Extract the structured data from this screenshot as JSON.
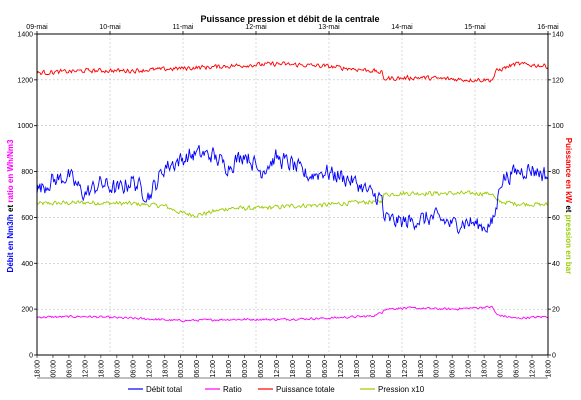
{
  "chart_data": {
    "type": "line",
    "title": "Puissance pression et débit de la centrale",
    "top_axis": {
      "labels": [
        "09-mai",
        "10-mai",
        "11-mai",
        "12-mai",
        "13-mai",
        "14-mai",
        "15-mai",
        "16-mai"
      ]
    },
    "x_axis": {
      "labels": [
        "18:00",
        "00:00",
        "06:00",
        "12:00",
        "18:00",
        "00:00",
        "06:00",
        "12:00",
        "18:00",
        "00:00",
        "06:00",
        "12:00",
        "18:00",
        "00:00",
        "06:00",
        "12:00",
        "18:00",
        "00:00",
        "06:00",
        "12:00",
        "18:00",
        "00:00",
        "06:00",
        "12:00",
        "18:00",
        "00:00",
        "06:00",
        "12:00",
        "18:00",
        "00:00",
        "06:00",
        "12:00",
        "18:00"
      ]
    },
    "y_left": {
      "label_parts": [
        {
          "text": "Débit en Nm3/h",
          "color": "#0000ff"
        },
        {
          "text": " et ",
          "color": "#000000"
        },
        {
          "text": "ratio en Wh/Nm3",
          "color": "#ff00ff"
        }
      ],
      "ticks": [
        0,
        200,
        400,
        600,
        800,
        1000,
        1200,
        1400
      ],
      "ylim": [
        0,
        1400
      ]
    },
    "y_right": {
      "label_parts": [
        {
          "text": "Puissance en kW",
          "color": "#ff0000"
        },
        {
          "text": " et ",
          "color": "#000000"
        },
        {
          "text": "pression en bar",
          "color": "#99cc00"
        }
      ],
      "ticks": [
        0,
        20,
        40,
        60,
        80,
        100,
        120,
        140
      ],
      "ylim": [
        0,
        140
      ]
    },
    "x_range": [
      0,
      32
    ],
    "grid": true,
    "legend_position": "bottom",
    "series": [
      {
        "name": "Débit total",
        "color": "#0000ff",
        "axis": "left",
        "noise": 45,
        "points": [
          [
            0,
            720
          ],
          [
            1,
            760
          ],
          [
            2,
            780
          ],
          [
            3,
            700
          ],
          [
            4,
            750
          ],
          [
            5,
            720
          ],
          [
            6,
            760
          ],
          [
            7,
            690
          ],
          [
            8,
            820
          ],
          [
            9,
            850
          ],
          [
            10,
            880
          ],
          [
            11,
            870
          ],
          [
            12,
            820
          ],
          [
            13,
            880
          ],
          [
            14,
            800
          ],
          [
            15,
            860
          ],
          [
            16,
            830
          ],
          [
            17,
            780
          ],
          [
            18,
            800
          ],
          [
            19,
            780
          ],
          [
            20,
            750
          ],
          [
            21,
            700
          ],
          [
            21.6,
            680
          ],
          [
            21.7,
            600
          ],
          [
            22,
            590
          ],
          [
            23,
            580
          ],
          [
            24,
            590
          ],
          [
            25,
            600
          ],
          [
            26,
            570
          ],
          [
            27,
            580
          ],
          [
            28,
            560
          ],
          [
            28.5,
            570
          ],
          [
            28.8,
            650
          ],
          [
            29,
            760
          ],
          [
            30,
            800
          ],
          [
            31,
            810
          ],
          [
            32,
            780
          ]
        ]
      },
      {
        "name": "Ratio",
        "color": "#ff00ff",
        "axis": "left",
        "noise": 6,
        "points": [
          [
            0,
            165
          ],
          [
            3,
            168
          ],
          [
            6,
            160
          ],
          [
            9,
            150
          ],
          [
            12,
            155
          ],
          [
            15,
            155
          ],
          [
            18,
            160
          ],
          [
            21,
            170
          ],
          [
            21.6,
            185
          ],
          [
            21.7,
            200
          ],
          [
            23,
            205
          ],
          [
            26,
            200
          ],
          [
            28.5,
            210
          ],
          [
            28.8,
            175
          ],
          [
            30,
            160
          ],
          [
            32,
            168
          ]
        ]
      },
      {
        "name": "Puissance totale",
        "color": "#ff0000",
        "axis": "right",
        "noise": 1.2,
        "points": [
          [
            0,
            123
          ],
          [
            3,
            124
          ],
          [
            6,
            124
          ],
          [
            9,
            125
          ],
          [
            12,
            126
          ],
          [
            15,
            127
          ],
          [
            18,
            126
          ],
          [
            21,
            124
          ],
          [
            21.6,
            123
          ],
          [
            21.7,
            120.5
          ],
          [
            24,
            121
          ],
          [
            27,
            120
          ],
          [
            28.5,
            120
          ],
          [
            28.8,
            124
          ],
          [
            30,
            127
          ],
          [
            32,
            126
          ]
        ]
      },
      {
        "name": "Pression x10",
        "color": "#99cc00",
        "axis": "left",
        "noise": 12,
        "points": [
          [
            0,
            660
          ],
          [
            3,
            665
          ],
          [
            6,
            660
          ],
          [
            8,
            650
          ],
          [
            9,
            620
          ],
          [
            10,
            610
          ],
          [
            12,
            640
          ],
          [
            14,
            640
          ],
          [
            16,
            650
          ],
          [
            18,
            655
          ],
          [
            20,
            665
          ],
          [
            21.6,
            670
          ],
          [
            21.7,
            700
          ],
          [
            23,
            705
          ],
          [
            26,
            705
          ],
          [
            28.5,
            705
          ],
          [
            28.8,
            670
          ],
          [
            30,
            660
          ],
          [
            32,
            655
          ]
        ]
      }
    ]
  }
}
